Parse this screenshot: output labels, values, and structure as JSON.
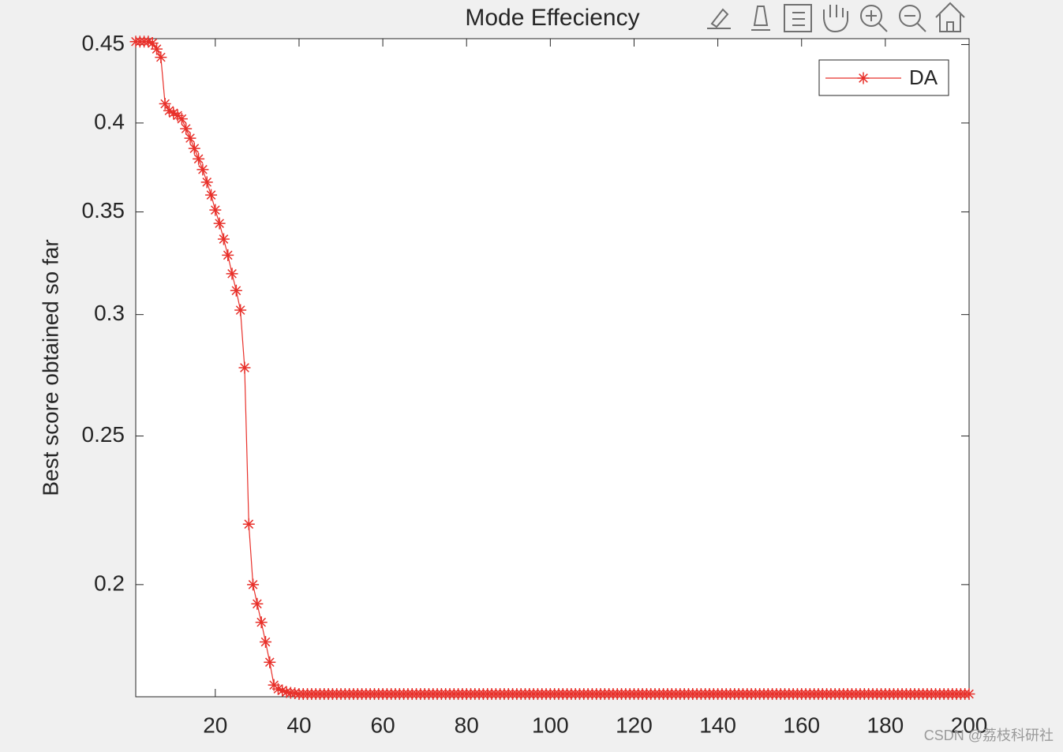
{
  "chart_data": {
    "type": "line",
    "title": "Mode Effeciency",
    "ylabel": "Best score obtained so far",
    "yscale": "log",
    "xlim": [
      1,
      200
    ],
    "ylim": [
      0.169,
      0.454
    ],
    "xticks": [
      20,
      40,
      60,
      80,
      100,
      120,
      140,
      160,
      180,
      200
    ],
    "yticks": [
      0.2,
      0.25,
      0.3,
      0.35,
      0.4,
      0.45
    ],
    "legend": "top-right",
    "watermark": "CSDN @荔枝科研社",
    "x": [
      1,
      2,
      3,
      4,
      5,
      6,
      7,
      8,
      9,
      10,
      11,
      12,
      13,
      14,
      15,
      16,
      17,
      18,
      19,
      20,
      21,
      22,
      23,
      24,
      25,
      26,
      27,
      28,
      29,
      30,
      31,
      32,
      33,
      34,
      35,
      36,
      37,
      38,
      39,
      40,
      41,
      42,
      43,
      44,
      45,
      46,
      47,
      48,
      49,
      50,
      51,
      52,
      53,
      54,
      55,
      56,
      57,
      58,
      59,
      60,
      61,
      62,
      63,
      64,
      65,
      66,
      67,
      68,
      69,
      70,
      71,
      72,
      73,
      74,
      75,
      76,
      77,
      78,
      79,
      80,
      81,
      82,
      83,
      84,
      85,
      86,
      87,
      88,
      89,
      90,
      91,
      92,
      93,
      94,
      95,
      96,
      97,
      98,
      99,
      100,
      101,
      102,
      103,
      104,
      105,
      106,
      107,
      108,
      109,
      110,
      111,
      112,
      113,
      114,
      115,
      116,
      117,
      118,
      119,
      120,
      121,
      122,
      123,
      124,
      125,
      126,
      127,
      128,
      129,
      130,
      131,
      132,
      133,
      134,
      135,
      136,
      137,
      138,
      139,
      140,
      141,
      142,
      143,
      144,
      145,
      146,
      147,
      148,
      149,
      150,
      151,
      152,
      153,
      154,
      155,
      156,
      157,
      158,
      159,
      160,
      161,
      162,
      163,
      164,
      165,
      166,
      167,
      168,
      169,
      170,
      171,
      172,
      173,
      174,
      175,
      176,
      177,
      178,
      179,
      180,
      181,
      182,
      183,
      184,
      185,
      186,
      187,
      188,
      189,
      190,
      191,
      192,
      193,
      194,
      195,
      196,
      197,
      198,
      199,
      200
    ],
    "series": [
      {
        "name": "DA",
        "color": "#e8302a",
        "values": [
          0.452,
          0.452,
          0.452,
          0.452,
          0.451,
          0.447,
          0.4415,
          0.4117,
          0.4075,
          0.406,
          0.4045,
          0.4025,
          0.3966,
          0.391,
          0.385,
          0.379,
          0.373,
          0.366,
          0.359,
          0.351,
          0.344,
          0.336,
          0.328,
          0.319,
          0.311,
          0.302,
          0.277,
          0.219,
          0.2,
          0.1943,
          0.189,
          0.1835,
          0.178,
          0.172,
          0.171,
          0.1706,
          0.1702,
          0.17,
          0.1699,
          0.1697,
          0.1697,
          0.1697,
          0.1697,
          0.1697,
          0.1697,
          0.1697,
          0.1697,
          0.1697,
          0.1697,
          0.1697,
          0.1697,
          0.1697,
          0.1697,
          0.1697,
          0.1697,
          0.1697,
          0.1697,
          0.1697,
          0.1697,
          0.1697,
          0.1697,
          0.1697,
          0.1697,
          0.1697,
          0.1697,
          0.1697,
          0.1697,
          0.1697,
          0.1697,
          0.1697,
          0.1697,
          0.1697,
          0.1697,
          0.1697,
          0.1697,
          0.1697,
          0.1697,
          0.1697,
          0.1697,
          0.1697,
          0.1697,
          0.1697,
          0.1697,
          0.1697,
          0.1697,
          0.1697,
          0.1697,
          0.1697,
          0.1697,
          0.1697,
          0.1697,
          0.1697,
          0.1697,
          0.1697,
          0.1697,
          0.1697,
          0.1697,
          0.1697,
          0.1697,
          0.1697,
          0.1697,
          0.1697,
          0.1697,
          0.1697,
          0.1697,
          0.1697,
          0.1697,
          0.1697,
          0.1697,
          0.1697,
          0.1697,
          0.1697,
          0.1697,
          0.1697,
          0.1697,
          0.1697,
          0.1697,
          0.1697,
          0.1697,
          0.1697,
          0.1697,
          0.1697,
          0.1697,
          0.1697,
          0.1697,
          0.1697,
          0.1697,
          0.1697,
          0.1697,
          0.1697,
          0.1697,
          0.1697,
          0.1697,
          0.1697,
          0.1697,
          0.1697,
          0.1697,
          0.1697,
          0.1697,
          0.1697,
          0.1697,
          0.1697,
          0.1697,
          0.1697,
          0.1697,
          0.1697,
          0.1697,
          0.1697,
          0.1697,
          0.1697,
          0.1697,
          0.1697,
          0.1697,
          0.1697,
          0.1697,
          0.1697,
          0.1697,
          0.1697,
          0.1697,
          0.1697,
          0.1697,
          0.1697,
          0.1697,
          0.1697,
          0.1697,
          0.1697,
          0.1697,
          0.1697,
          0.1697,
          0.1697,
          0.1697,
          0.1697,
          0.1697,
          0.1697,
          0.1697,
          0.1697,
          0.1697,
          0.1697,
          0.1697,
          0.1697,
          0.1697,
          0.1697,
          0.1697,
          0.1697,
          0.1697,
          0.1697,
          0.1697,
          0.1697,
          0.1697,
          0.1697,
          0.1697,
          0.1697,
          0.1697,
          0.1697,
          0.1697,
          0.1697,
          0.1697,
          0.1697,
          0.1697,
          0.1697
        ]
      }
    ]
  }
}
